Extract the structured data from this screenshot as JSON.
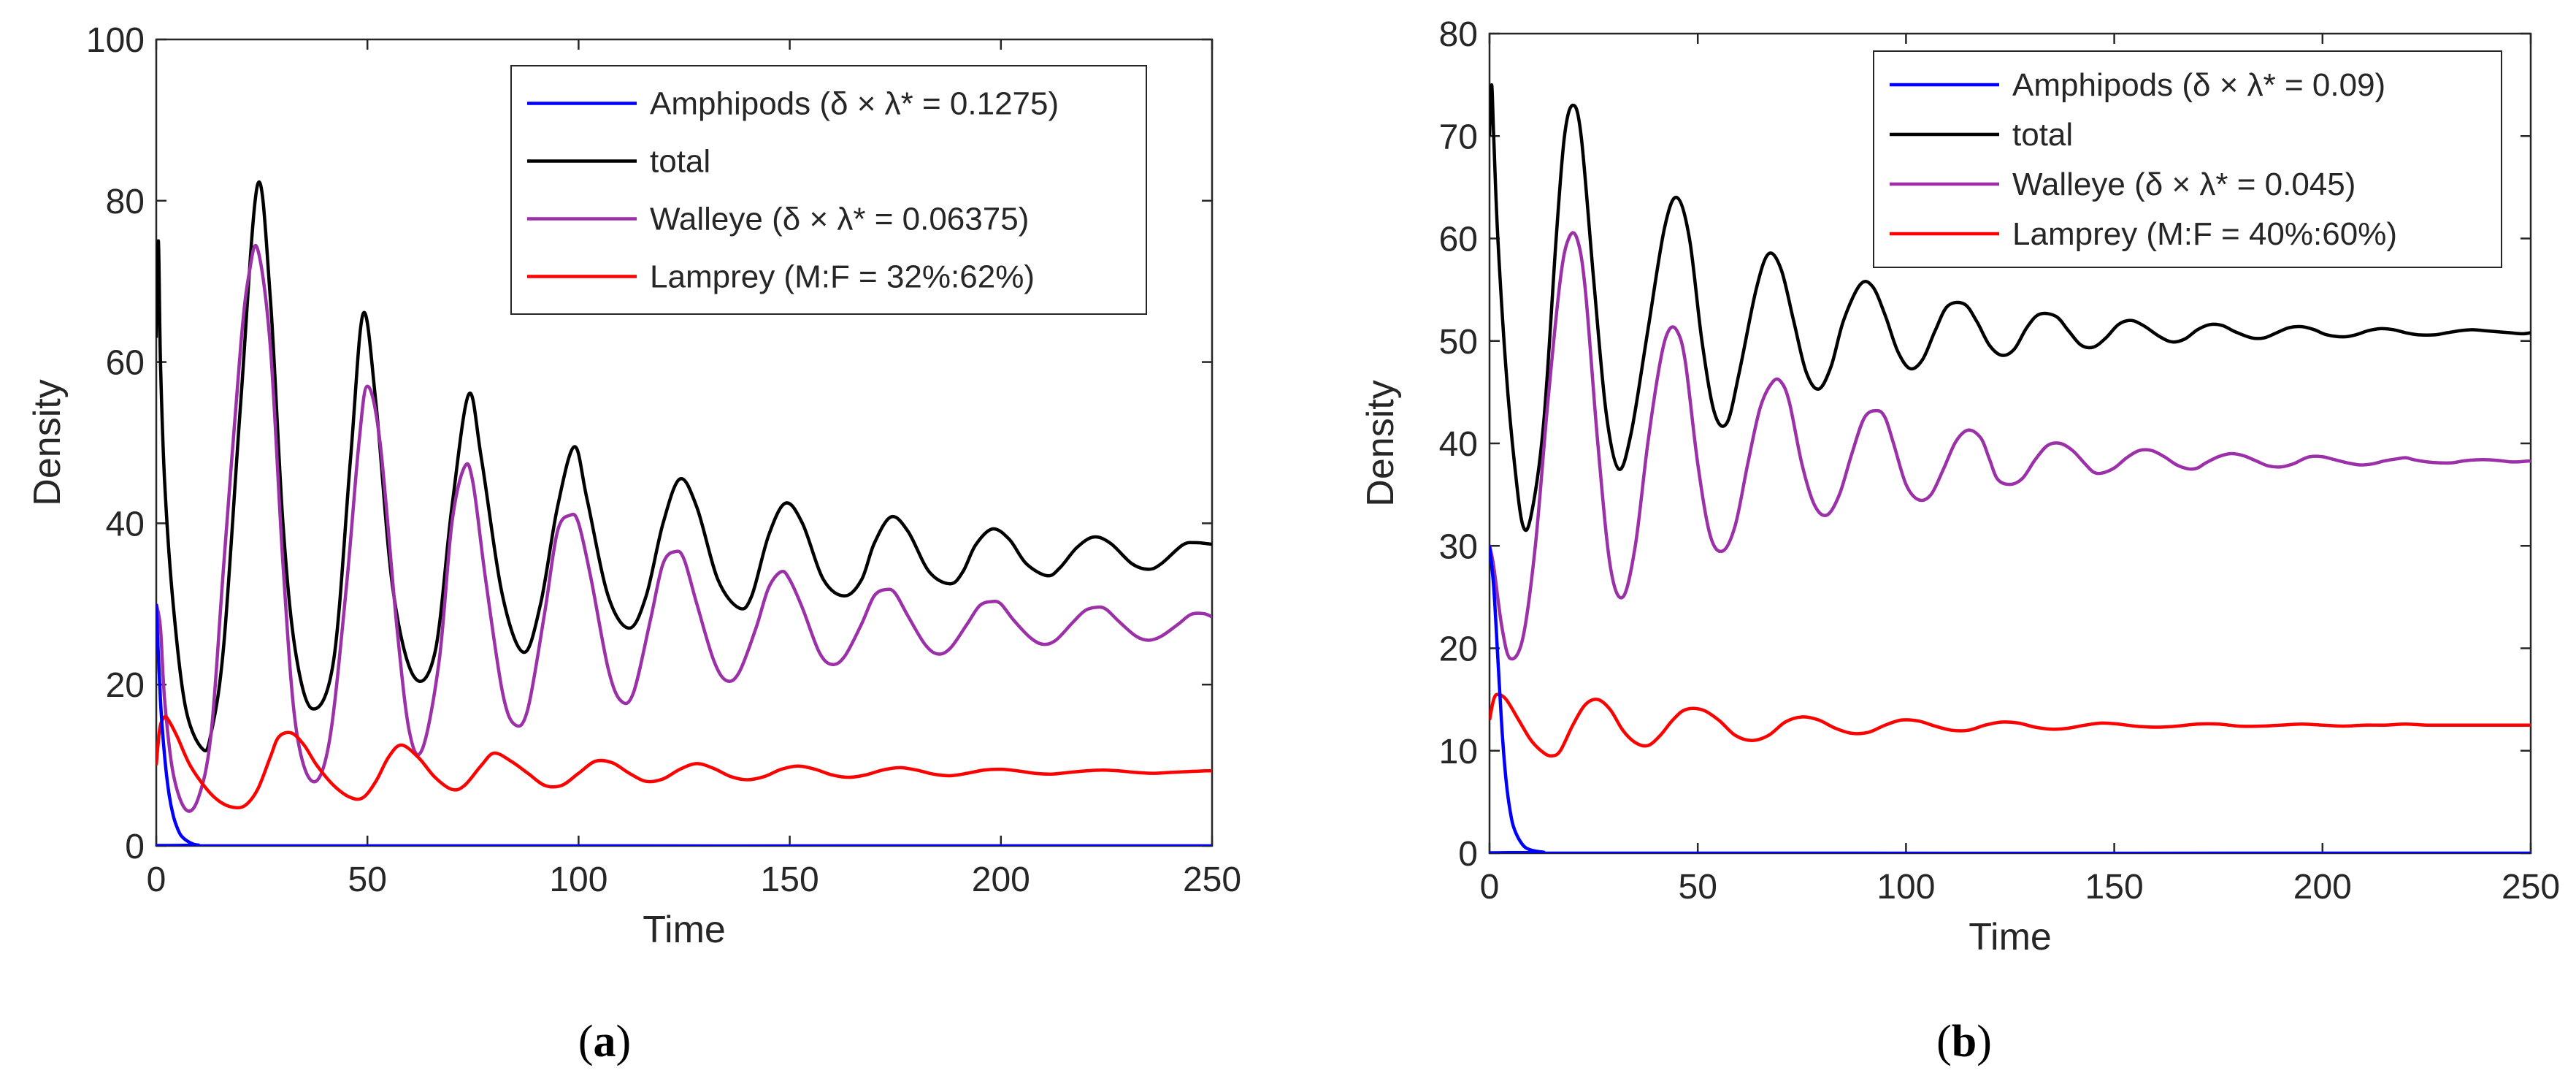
{
  "chart_data": [
    {
      "type": "line",
      "panel_label": "a",
      "xlabel": "Time",
      "ylabel": "Density",
      "xlim": [
        0,
        250
      ],
      "ylim": [
        0,
        100
      ],
      "xticks": [
        0,
        50,
        100,
        150,
        200,
        250
      ],
      "yticks": [
        0,
        20,
        40,
        60,
        80,
        100
      ],
      "legend_position": "top-right",
      "series": [
        {
          "name": "Amphipods (δ × λ* = 0.1275)",
          "color": "#0000ff",
          "x": [
            0,
            1,
            2,
            3,
            4,
            5,
            6,
            8,
            10,
            15,
            250
          ],
          "y": [
            30,
            18,
            11,
            6.5,
            3.8,
            2.2,
            1.2,
            0.4,
            0.1,
            0,
            0
          ]
        },
        {
          "name": "total",
          "color": "#000000",
          "x": [
            0,
            0.5,
            1,
            2,
            4,
            7,
            11,
            13,
            16,
            20,
            24,
            27,
            30,
            33,
            37,
            42,
            46,
            49,
            52,
            56,
            61,
            66,
            70,
            74,
            77,
            82,
            87,
            91,
            95,
            99,
            102,
            107,
            112,
            116,
            120,
            124,
            128,
            133,
            138,
            141,
            145,
            149,
            153,
            158,
            163,
            167,
            170,
            174,
            178,
            183,
            188,
            191,
            194,
            198,
            202,
            206,
            211,
            214,
            218,
            222,
            226,
            231,
            235,
            238,
            243,
            246,
            250
          ],
          "y": [
            63,
            75,
            60,
            45,
            30,
            17,
            12,
            14,
            25,
            55,
            82,
            68,
            40,
            24,
            17,
            23,
            48,
            66,
            55,
            32,
            21,
            24,
            42,
            56,
            48,
            31,
            24,
            30,
            42,
            49.5,
            43,
            31,
            27,
            31,
            40,
            45.5,
            42,
            33,
            29.5,
            31,
            38.5,
            42.5,
            40,
            33,
            31,
            33,
            37.5,
            40.8,
            39,
            34,
            32.5,
            34,
            37.3,
            39.3,
            38,
            35,
            33.5,
            34.5,
            37,
            38.3,
            37.5,
            35,
            34.3,
            35,
            37.3,
            37.6,
            37.4
          ]
        },
        {
          "name": "Walleye (δ × λ* = 0.06375)",
          "color": "#9b30a8",
          "x": [
            0,
            1,
            2,
            4,
            7,
            10,
            13,
            16,
            20,
            22,
            24,
            27,
            30,
            33,
            37,
            41,
            45,
            48,
            50,
            53,
            57,
            60,
            63,
            67,
            70,
            73,
            75,
            78,
            82,
            85,
            88,
            92,
            95,
            98,
            100,
            103,
            107,
            110,
            113,
            117,
            120,
            123,
            125,
            128,
            132,
            135,
            138,
            142,
            145,
            148,
            150,
            153,
            157,
            160,
            163,
            167,
            170,
            173,
            175,
            178,
            182,
            185,
            188,
            192,
            195,
            198,
            200,
            203,
            207,
            210,
            213,
            217,
            220,
            223,
            225,
            228,
            232,
            235,
            238,
            242,
            245,
            248,
            250
          ],
          "y": [
            30,
            27,
            18,
            9,
            4.5,
            6,
            14,
            35,
            62,
            71,
            74,
            62,
            35,
            15,
            8,
            13,
            32,
            50,
            57,
            50,
            27,
            14,
            12,
            23,
            40,
            47,
            45,
            33,
            19,
            15,
            17,
            29,
            39,
            41,
            40,
            33,
            22,
            18,
            19,
            28,
            35,
            36.5,
            35.5,
            30,
            23,
            20.5,
            21.5,
            27,
            32,
            34,
            33,
            29.5,
            24,
            22.5,
            23.5,
            27.5,
            31,
            31.8,
            31.3,
            28.5,
            25,
            23.8,
            24.5,
            27.5,
            29.8,
            30.3,
            30,
            28,
            25.8,
            25,
            25.5,
            27.7,
            29.2,
            29.6,
            29.3,
            27.8,
            26,
            25.5,
            26,
            27.5,
            28.7,
            28.8,
            28.4
          ]
        },
        {
          "name": "Lamprey (M:F = 32%:62%)",
          "color": "#ff0000",
          "x": [
            0,
            0.5,
            1,
            2,
            3,
            5,
            8,
            12,
            15,
            18,
            21,
            24,
            27,
            29,
            32,
            35,
            38,
            42,
            46,
            49,
            52,
            55,
            58,
            62,
            66,
            70,
            73,
            77,
            80,
            84,
            88,
            92,
            96,
            100,
            104,
            108,
            112,
            116,
            120,
            124,
            128,
            132,
            136,
            140,
            144,
            148,
            152,
            156,
            160,
            164,
            168,
            172,
            176,
            180,
            184,
            188,
            192,
            196,
            200,
            204,
            208,
            212,
            216,
            220,
            224,
            228,
            232,
            236,
            240,
            244,
            248,
            250
          ],
          "y": [
            10,
            13,
            15,
            16,
            15.5,
            13.5,
            10,
            7,
            5.5,
            4.8,
            5,
            7,
            11,
            13.5,
            14,
            12.5,
            10,
            7.5,
            6,
            6,
            8,
            11,
            12.5,
            11,
            8.5,
            7,
            7.5,
            10,
            11.5,
            10.5,
            9,
            7.5,
            7.5,
            9,
            10.5,
            10.3,
            9,
            8,
            8.3,
            9.5,
            10.2,
            9.6,
            8.6,
            8.2,
            8.6,
            9.5,
            9.9,
            9.5,
            8.8,
            8.5,
            8.8,
            9.4,
            9.7,
            9.4,
            8.9,
            8.7,
            9,
            9.4,
            9.5,
            9.3,
            9,
            8.9,
            9.1,
            9.3,
            9.4,
            9.3,
            9.1,
            9,
            9.1,
            9.2,
            9.3,
            9.3
          ]
        }
      ]
    },
    {
      "type": "line",
      "panel_label": "b",
      "xlabel": "Time",
      "ylabel": "Density",
      "xlim": [
        0,
        250
      ],
      "ylim": [
        0,
        80
      ],
      "xticks": [
        0,
        50,
        100,
        150,
        200,
        250
      ],
      "yticks": [
        0,
        10,
        20,
        30,
        40,
        50,
        60,
        70,
        80
      ],
      "legend_position": "top-right",
      "series": [
        {
          "name": "Amphipods (δ × λ* = 0.09)",
          "color": "#0000ff",
          "x": [
            0,
            1,
            2,
            3,
            4,
            5,
            6,
            8,
            10,
            13,
            18,
            250
          ],
          "y": [
            30,
            26,
            19,
            12,
            7,
            4,
            2.3,
            0.8,
            0.3,
            0.1,
            0,
            0
          ]
        },
        {
          "name": "total",
          "color": "#000000",
          "x": [
            0,
            0.5,
            1,
            2,
            4,
            6,
            8,
            10,
            13,
            16,
            18,
            20,
            22,
            25,
            28,
            31,
            34,
            38,
            42,
            45,
            48,
            51,
            54,
            57,
            60,
            64,
            67,
            70,
            73,
            76,
            79,
            82,
            85,
            89,
            92,
            95,
            98,
            101,
            104,
            107,
            110,
            114,
            117,
            120,
            123,
            126,
            129,
            132,
            136,
            139,
            142,
            145,
            148,
            151,
            154,
            157,
            161,
            164,
            167,
            170,
            173,
            176,
            179,
            183,
            186,
            189,
            192,
            195,
            198,
            201,
            205,
            208,
            211,
            214,
            217,
            220,
            223,
            227,
            230,
            233,
            236,
            239,
            242,
            245,
            248,
            250
          ],
          "y": [
            70,
            75,
            70,
            60,
            47,
            38,
            32,
            33,
            42,
            60,
            70,
            73,
            70,
            56,
            43,
            37.5,
            41,
            51,
            61,
            64,
            60,
            50,
            43,
            42,
            47,
            55,
            58.5,
            57,
            52,
            47,
            45.3,
            47.5,
            52,
            55.5,
            55.3,
            52.5,
            49,
            47.3,
            48.2,
            51,
            53.4,
            53.6,
            51.9,
            49.6,
            48.6,
            49.2,
            51.3,
            52.6,
            52.4,
            51,
            49.6,
            49.4,
            50.3,
            51.6,
            52,
            51.5,
            50.4,
            49.9,
            50.2,
            51.1,
            51.6,
            51.5,
            50.9,
            50.3,
            50.3,
            50.8,
            51.3,
            51.4,
            51.1,
            50.6,
            50.4,
            50.6,
            51,
            51.2,
            51.1,
            50.8,
            50.6,
            50.6,
            50.8,
            51,
            51.1,
            51,
            50.9,
            50.8,
            50.7,
            50.8
          ]
        },
        {
          "name": "Walleye (δ × λ* = 0.045)",
          "color": "#9b30a8",
          "x": [
            0,
            1,
            3,
            5,
            8,
            11,
            14,
            17,
            19,
            21,
            23,
            26,
            29,
            32,
            35,
            38,
            41,
            43,
            45,
            47,
            50,
            53,
            56,
            59,
            62,
            65,
            68,
            70,
            72,
            75,
            78,
            81,
            84,
            87,
            90,
            93,
            95,
            97,
            100,
            103,
            106,
            109,
            112,
            115,
            118,
            120,
            122,
            125,
            128,
            131,
            134,
            137,
            140,
            143,
            145,
            147,
            150,
            153,
            156,
            159,
            162,
            165,
            168,
            170,
            172,
            175,
            178,
            181,
            184,
            187,
            190,
            193,
            195,
            197,
            200,
            203,
            206,
            209,
            212,
            215,
            218,
            220,
            222,
            225,
            228,
            231,
            234,
            237,
            240,
            243,
            245,
            247,
            250
          ],
          "y": [
            30,
            28,
            22,
            19,
            21,
            30,
            44,
            56,
            60,
            60,
            55,
            40,
            28,
            25,
            30,
            40,
            48,
            51,
            51,
            48,
            38,
            31,
            29.5,
            32,
            38,
            43.5,
            46,
            46,
            44,
            38,
            34,
            33,
            35,
            39,
            42.5,
            43.2,
            42.5,
            40,
            36,
            34.5,
            35,
            37.5,
            40.2,
            41.3,
            40.5,
            38.5,
            36.5,
            36,
            36.6,
            38.4,
            39.8,
            40,
            39.3,
            38,
            37.2,
            37.1,
            37.6,
            38.6,
            39.3,
            39.3,
            38.7,
            37.9,
            37.5,
            37.6,
            38.1,
            38.7,
            39,
            38.8,
            38.3,
            37.8,
            37.7,
            38,
            38.4,
            38.7,
            38.7,
            38.4,
            38.1,
            37.9,
            38,
            38.3,
            38.5,
            38.6,
            38.4,
            38.2,
            38.1,
            38.1,
            38.3,
            38.4,
            38.4,
            38.3,
            38.2,
            38.2,
            38.3
          ]
        },
        {
          "name": "Lamprey (M:F = 40%:60%)",
          "color": "#ff0000",
          "x": [
            0,
            1,
            2,
            4,
            7,
            10,
            13,
            15,
            17,
            20,
            23,
            26,
            29,
            32,
            35,
            38,
            41,
            44,
            47,
            51,
            55,
            59,
            63,
            67,
            71,
            75,
            79,
            83,
            87,
            91,
            95,
            99,
            103,
            107,
            111,
            115,
            119,
            123,
            127,
            131,
            135,
            139,
            143,
            147,
            151,
            155,
            160,
            165,
            170,
            175,
            180,
            185,
            190,
            195,
            200,
            205,
            210,
            215,
            220,
            225,
            230,
            235,
            240,
            245,
            250
          ],
          "y": [
            13,
            15,
            15.5,
            15,
            13,
            11,
            9.8,
            9.5,
            10,
            12.5,
            14.5,
            15,
            14,
            12,
            10.8,
            10.5,
            11.5,
            13,
            14,
            14,
            13,
            11.5,
            11,
            11.5,
            12.8,
            13.3,
            13,
            12.2,
            11.7,
            11.8,
            12.5,
            13,
            12.9,
            12.4,
            12,
            12,
            12.5,
            12.8,
            12.7,
            12.3,
            12.1,
            12.2,
            12.5,
            12.7,
            12.6,
            12.4,
            12.3,
            12.4,
            12.6,
            12.6,
            12.4,
            12.4,
            12.5,
            12.6,
            12.5,
            12.4,
            12.5,
            12.5,
            12.6,
            12.5,
            12.5,
            12.5,
            12.5,
            12.5,
            12.5
          ]
        }
      ]
    }
  ]
}
